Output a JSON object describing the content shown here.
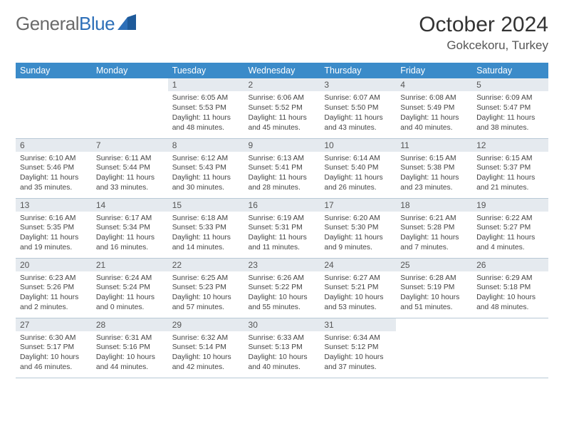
{
  "branding": {
    "name_part1": "General",
    "name_part2": "Blue",
    "logo_color": "#2d6fb8"
  },
  "header": {
    "title": "October 2024",
    "location": "Gokcekoru, Turkey"
  },
  "colors": {
    "header_bg": "#3b8bc9",
    "header_fg": "#ffffff",
    "daynum_bg": "#e5eaef",
    "row_border": "#b8c9d6"
  },
  "weekdays": [
    "Sunday",
    "Monday",
    "Tuesday",
    "Wednesday",
    "Thursday",
    "Friday",
    "Saturday"
  ],
  "weeks": [
    [
      {
        "empty": true
      },
      {
        "empty": true
      },
      {
        "day": "1",
        "sunrise": "Sunrise: 6:05 AM",
        "sunset": "Sunset: 5:53 PM",
        "daylight": "Daylight: 11 hours and 48 minutes."
      },
      {
        "day": "2",
        "sunrise": "Sunrise: 6:06 AM",
        "sunset": "Sunset: 5:52 PM",
        "daylight": "Daylight: 11 hours and 45 minutes."
      },
      {
        "day": "3",
        "sunrise": "Sunrise: 6:07 AM",
        "sunset": "Sunset: 5:50 PM",
        "daylight": "Daylight: 11 hours and 43 minutes."
      },
      {
        "day": "4",
        "sunrise": "Sunrise: 6:08 AM",
        "sunset": "Sunset: 5:49 PM",
        "daylight": "Daylight: 11 hours and 40 minutes."
      },
      {
        "day": "5",
        "sunrise": "Sunrise: 6:09 AM",
        "sunset": "Sunset: 5:47 PM",
        "daylight": "Daylight: 11 hours and 38 minutes."
      }
    ],
    [
      {
        "day": "6",
        "sunrise": "Sunrise: 6:10 AM",
        "sunset": "Sunset: 5:46 PM",
        "daylight": "Daylight: 11 hours and 35 minutes."
      },
      {
        "day": "7",
        "sunrise": "Sunrise: 6:11 AM",
        "sunset": "Sunset: 5:44 PM",
        "daylight": "Daylight: 11 hours and 33 minutes."
      },
      {
        "day": "8",
        "sunrise": "Sunrise: 6:12 AM",
        "sunset": "Sunset: 5:43 PM",
        "daylight": "Daylight: 11 hours and 30 minutes."
      },
      {
        "day": "9",
        "sunrise": "Sunrise: 6:13 AM",
        "sunset": "Sunset: 5:41 PM",
        "daylight": "Daylight: 11 hours and 28 minutes."
      },
      {
        "day": "10",
        "sunrise": "Sunrise: 6:14 AM",
        "sunset": "Sunset: 5:40 PM",
        "daylight": "Daylight: 11 hours and 26 minutes."
      },
      {
        "day": "11",
        "sunrise": "Sunrise: 6:15 AM",
        "sunset": "Sunset: 5:38 PM",
        "daylight": "Daylight: 11 hours and 23 minutes."
      },
      {
        "day": "12",
        "sunrise": "Sunrise: 6:15 AM",
        "sunset": "Sunset: 5:37 PM",
        "daylight": "Daylight: 11 hours and 21 minutes."
      }
    ],
    [
      {
        "day": "13",
        "sunrise": "Sunrise: 6:16 AM",
        "sunset": "Sunset: 5:35 PM",
        "daylight": "Daylight: 11 hours and 19 minutes."
      },
      {
        "day": "14",
        "sunrise": "Sunrise: 6:17 AM",
        "sunset": "Sunset: 5:34 PM",
        "daylight": "Daylight: 11 hours and 16 minutes."
      },
      {
        "day": "15",
        "sunrise": "Sunrise: 6:18 AM",
        "sunset": "Sunset: 5:33 PM",
        "daylight": "Daylight: 11 hours and 14 minutes."
      },
      {
        "day": "16",
        "sunrise": "Sunrise: 6:19 AM",
        "sunset": "Sunset: 5:31 PM",
        "daylight": "Daylight: 11 hours and 11 minutes."
      },
      {
        "day": "17",
        "sunrise": "Sunrise: 6:20 AM",
        "sunset": "Sunset: 5:30 PM",
        "daylight": "Daylight: 11 hours and 9 minutes."
      },
      {
        "day": "18",
        "sunrise": "Sunrise: 6:21 AM",
        "sunset": "Sunset: 5:28 PM",
        "daylight": "Daylight: 11 hours and 7 minutes."
      },
      {
        "day": "19",
        "sunrise": "Sunrise: 6:22 AM",
        "sunset": "Sunset: 5:27 PM",
        "daylight": "Daylight: 11 hours and 4 minutes."
      }
    ],
    [
      {
        "day": "20",
        "sunrise": "Sunrise: 6:23 AM",
        "sunset": "Sunset: 5:26 PM",
        "daylight": "Daylight: 11 hours and 2 minutes."
      },
      {
        "day": "21",
        "sunrise": "Sunrise: 6:24 AM",
        "sunset": "Sunset: 5:24 PM",
        "daylight": "Daylight: 11 hours and 0 minutes."
      },
      {
        "day": "22",
        "sunrise": "Sunrise: 6:25 AM",
        "sunset": "Sunset: 5:23 PM",
        "daylight": "Daylight: 10 hours and 57 minutes."
      },
      {
        "day": "23",
        "sunrise": "Sunrise: 6:26 AM",
        "sunset": "Sunset: 5:22 PM",
        "daylight": "Daylight: 10 hours and 55 minutes."
      },
      {
        "day": "24",
        "sunrise": "Sunrise: 6:27 AM",
        "sunset": "Sunset: 5:21 PM",
        "daylight": "Daylight: 10 hours and 53 minutes."
      },
      {
        "day": "25",
        "sunrise": "Sunrise: 6:28 AM",
        "sunset": "Sunset: 5:19 PM",
        "daylight": "Daylight: 10 hours and 51 minutes."
      },
      {
        "day": "26",
        "sunrise": "Sunrise: 6:29 AM",
        "sunset": "Sunset: 5:18 PM",
        "daylight": "Daylight: 10 hours and 48 minutes."
      }
    ],
    [
      {
        "day": "27",
        "sunrise": "Sunrise: 6:30 AM",
        "sunset": "Sunset: 5:17 PM",
        "daylight": "Daylight: 10 hours and 46 minutes."
      },
      {
        "day": "28",
        "sunrise": "Sunrise: 6:31 AM",
        "sunset": "Sunset: 5:16 PM",
        "daylight": "Daylight: 10 hours and 44 minutes."
      },
      {
        "day": "29",
        "sunrise": "Sunrise: 6:32 AM",
        "sunset": "Sunset: 5:14 PM",
        "daylight": "Daylight: 10 hours and 42 minutes."
      },
      {
        "day": "30",
        "sunrise": "Sunrise: 6:33 AM",
        "sunset": "Sunset: 5:13 PM",
        "daylight": "Daylight: 10 hours and 40 minutes."
      },
      {
        "day": "31",
        "sunrise": "Sunrise: 6:34 AM",
        "sunset": "Sunset: 5:12 PM",
        "daylight": "Daylight: 10 hours and 37 minutes."
      },
      {
        "empty": true
      },
      {
        "empty": true
      }
    ]
  ]
}
